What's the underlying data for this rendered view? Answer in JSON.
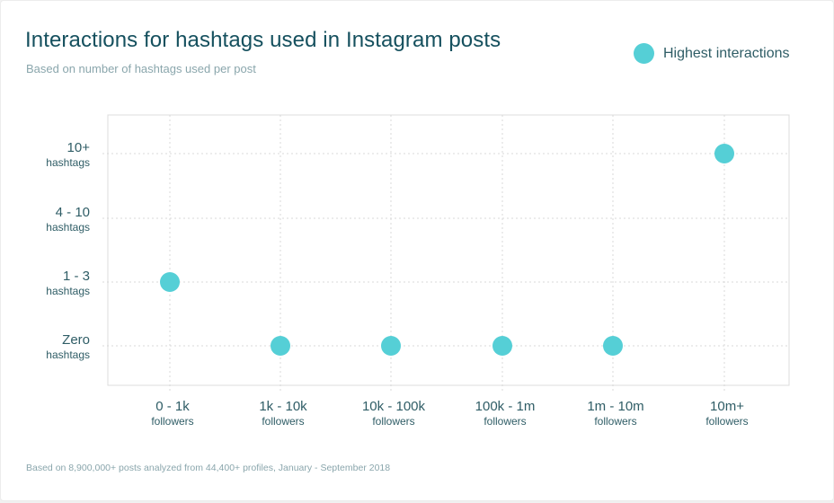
{
  "header": {
    "title": "Interactions for hashtags used in Instagram posts",
    "subtitle": "Based on number of hashtags used per post"
  },
  "legend": {
    "label": "Highest interactions"
  },
  "footnote": "Based on 8,900,000+ posts analyzed from 44,400+ profiles, January - September 2018",
  "colors": {
    "marker": "#55cfd6",
    "grid": "#d8d8d8",
    "frame": "#dcdcdc"
  },
  "chart_data": {
    "type": "scatter",
    "title": "Interactions for hashtags used in Instagram posts",
    "subtitle": "Based on number of hashtags used per post",
    "x_categories": [
      {
        "label": "0 - 1k",
        "sub": "followers"
      },
      {
        "label": "1k - 10k",
        "sub": "followers"
      },
      {
        "label": "10k - 100k",
        "sub": "followers"
      },
      {
        "label": "100k - 1m",
        "sub": "followers"
      },
      {
        "label": "1m - 10m",
        "sub": "followers"
      },
      {
        "label": "10m+",
        "sub": "followers"
      }
    ],
    "y_categories": [
      {
        "label": "Zero",
        "sub": "hashtags"
      },
      {
        "label": "1 - 3",
        "sub": "hashtags"
      },
      {
        "label": "4 - 10",
        "sub": "hashtags"
      },
      {
        "label": "10+",
        "sub": "hashtags"
      }
    ],
    "series": [
      {
        "name": "Highest interactions",
        "points": [
          {
            "x": "0 - 1k",
            "y": "1 - 3"
          },
          {
            "x": "1k - 10k",
            "y": "Zero"
          },
          {
            "x": "10k - 100k",
            "y": "Zero"
          },
          {
            "x": "100k - 1m",
            "y": "Zero"
          },
          {
            "x": "1m - 10m",
            "y": "Zero"
          },
          {
            "x": "10m+",
            "y": "10+"
          }
        ]
      }
    ],
    "grid": true,
    "legend_position": "top-right"
  }
}
